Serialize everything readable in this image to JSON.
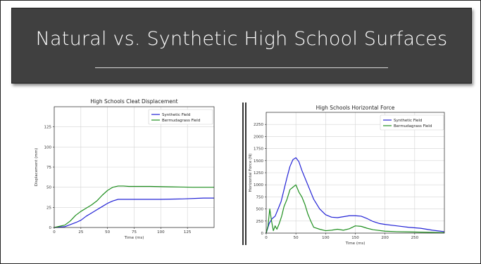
{
  "slide": {
    "title": "Natural vs. Synthetic High School Surfaces"
  },
  "chart_data": [
    {
      "type": "line",
      "title": "High Schools Cleat Displacement",
      "xlabel": "Time (ms)",
      "ylabel": "Displacement (mm)",
      "xlim": [
        0,
        150
      ],
      "ylim": [
        0,
        150
      ],
      "xticks": [
        0,
        25,
        50,
        75,
        100,
        125
      ],
      "yticks": [
        0,
        25,
        50,
        75,
        100,
        125
      ],
      "grid": true,
      "legend_position": "top-right",
      "series": [
        {
          "name": "Synthetic Field",
          "color": "#2323d6",
          "x": [
            0,
            10,
            20,
            25,
            30,
            35,
            40,
            45,
            50,
            55,
            60,
            65,
            70,
            80,
            100,
            120,
            140,
            150
          ],
          "y": [
            0,
            1,
            6,
            9,
            14,
            18,
            22,
            26,
            30,
            33,
            35,
            35,
            35,
            35,
            35,
            35.5,
            36.5,
            36.5
          ]
        },
        {
          "name": "Bermudagrass Field",
          "color": "#1f8f1f",
          "x": [
            0,
            10,
            15,
            20,
            25,
            30,
            35,
            40,
            45,
            50,
            55,
            60,
            65,
            70,
            90,
            110,
            130,
            150
          ],
          "y": [
            0,
            3,
            8,
            15,
            20,
            24,
            28,
            33,
            40,
            46,
            50,
            51.5,
            51.5,
            51,
            51,
            50.5,
            50,
            50
          ]
        }
      ]
    },
    {
      "type": "line",
      "title": "High Schools Horizontal Force",
      "xlabel": "Time (ms)",
      "ylabel": "Horizontal Force (N)",
      "xlim": [
        0,
        300
      ],
      "ylim": [
        0,
        2500
      ],
      "xticks": [
        0,
        50,
        100,
        150,
        200,
        250
      ],
      "yticks": [
        0,
        250,
        500,
        750,
        1000,
        1250,
        1500,
        1750,
        2000,
        2250
      ],
      "grid": true,
      "legend_position": "top-right",
      "series": [
        {
          "name": "Synthetic Field",
          "color": "#2323d6",
          "x": [
            0,
            5,
            10,
            15,
            20,
            25,
            30,
            35,
            40,
            45,
            50,
            55,
            60,
            70,
            80,
            90,
            100,
            110,
            120,
            130,
            140,
            150,
            160,
            170,
            180,
            190,
            200,
            220,
            240,
            260,
            280,
            300
          ],
          "y": [
            0,
            200,
            300,
            350,
            500,
            650,
            900,
            1150,
            1380,
            1520,
            1560,
            1480,
            1300,
            1000,
            700,
            500,
            380,
            330,
            320,
            340,
            360,
            360,
            350,
            300,
            240,
            200,
            180,
            150,
            120,
            100,
            60,
            30
          ]
        },
        {
          "name": "Bermudagrass Field",
          "color": "#1f8f1f",
          "x": [
            0,
            3,
            6,
            9,
            12,
            15,
            18,
            22,
            26,
            30,
            35,
            40,
            45,
            50,
            55,
            60,
            65,
            70,
            75,
            80,
            90,
            100,
            110,
            120,
            130,
            140,
            150,
            160,
            170,
            180,
            200,
            220,
            240,
            260,
            280,
            300
          ],
          "y": [
            0,
            150,
            500,
            250,
            50,
            150,
            80,
            200,
            350,
            550,
            700,
            900,
            950,
            1000,
            850,
            750,
            600,
            400,
            250,
            120,
            80,
            50,
            60,
            80,
            60,
            90,
            150,
            140,
            100,
            70,
            40,
            30,
            25,
            20,
            15,
            10
          ]
        }
      ]
    }
  ]
}
